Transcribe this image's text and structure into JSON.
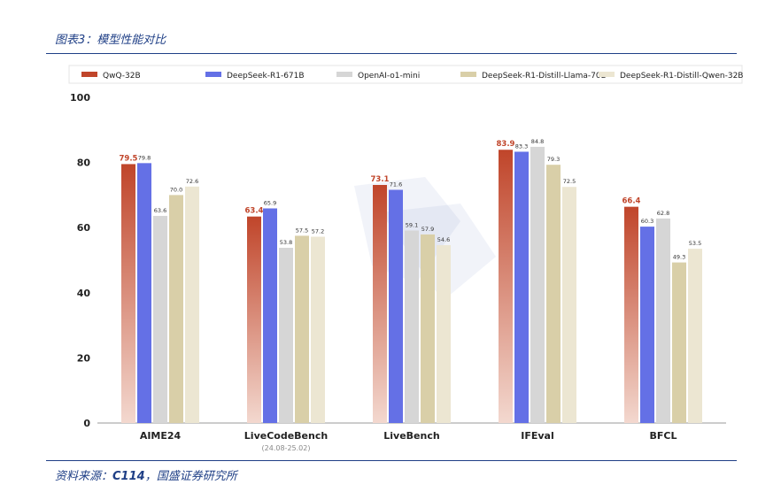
{
  "header": {
    "title": "图表3：模型性能对比"
  },
  "footer": {
    "source_prefix": "资料来源：",
    "source_bold": "C114",
    "source_suffix": "，国盛证券研究所"
  },
  "colors": {
    "series": [
      "#c0452a",
      "#6470e6",
      "#d6d6d6",
      "#d9cfa8",
      "#ece6d2"
    ],
    "value_label_highlight": "#c0452a",
    "value_label": "#333333",
    "grid": "#e6e6e6"
  },
  "chart_data": {
    "type": "bar",
    "title": "",
    "xlabel": "",
    "ylabel": "",
    "ylim": [
      0,
      100
    ],
    "yticks": [
      0,
      20,
      40,
      60,
      80,
      100
    ],
    "legend_position": "top",
    "categories": [
      "AIME24",
      "LiveCodeBench",
      "LiveBench",
      "IFEval",
      "BFCL"
    ],
    "category_sublabels": [
      "",
      "(24.08-25.02)",
      "",
      "",
      ""
    ],
    "series": [
      {
        "name": "QwQ-32B",
        "values": [
          79.5,
          63.4,
          73.1,
          83.9,
          66.4
        ]
      },
      {
        "name": "DeepSeek-R1-671B",
        "values": [
          79.8,
          65.9,
          71.6,
          83.3,
          60.3
        ]
      },
      {
        "name": "OpenAI-o1-mini",
        "values": [
          63.6,
          53.8,
          59.1,
          84.8,
          62.8
        ]
      },
      {
        "name": "DeepSeek-R1-Distill-Llama-70B",
        "values": [
          70.0,
          57.5,
          57.9,
          79.3,
          49.3
        ]
      },
      {
        "name": "DeepSeek-R1-Distill-Qwen-32B",
        "values": [
          72.6,
          57.2,
          54.6,
          72.5,
          53.5
        ]
      }
    ],
    "value_label_strings": [
      [
        "79.5",
        "63.4",
        "73.1",
        "83.9",
        "66.4"
      ],
      [
        "79.8",
        "65.9",
        "71.6",
        "83.3",
        "60.3"
      ],
      [
        "63.6",
        "53.8",
        "59.1",
        "84.8",
        "62.8"
      ],
      [
        "70.0",
        "57.5",
        "57.9",
        "79.3",
        "49.3"
      ],
      [
        "72.6",
        "57.2",
        "54.6",
        "72.5",
        "53.5"
      ]
    ]
  }
}
